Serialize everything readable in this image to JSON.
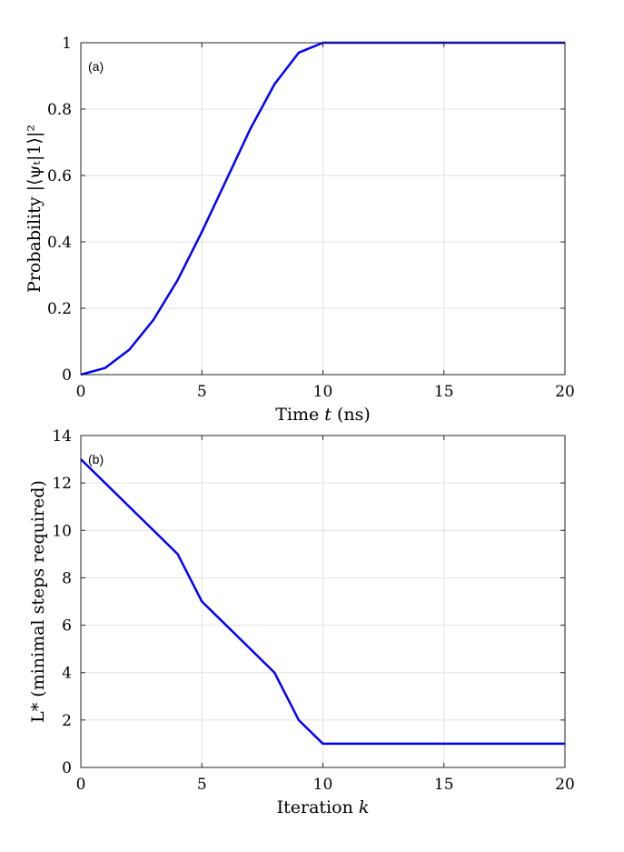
{
  "chart_data": [
    {
      "type": "line",
      "panel_label": "(a)",
      "xlabel_main": "Time ",
      "xlabel_var": "t",
      "xlabel_unit": "(ns)",
      "ylabel": "Probability |⟨ψₜ|1⟩|²",
      "xlim": [
        0,
        20
      ],
      "ylim": [
        0,
        1
      ],
      "xticks": [
        0,
        5,
        10,
        15,
        20
      ],
      "xtick_labels": [
        "0",
        "5",
        "10",
        "15",
        "20"
      ],
      "yticks": [
        0,
        0.2,
        0.4,
        0.6,
        0.8,
        1
      ],
      "ytick_labels": [
        "0",
        "0.2",
        "0.4",
        "0.6",
        "0.8",
        "1"
      ],
      "grid": true,
      "series": [
        {
          "color": "#0000ff",
          "x": [
            0,
            1,
            2,
            3,
            4,
            5,
            6,
            7,
            8,
            9,
            10,
            11,
            12,
            13,
            14,
            15,
            16,
            17,
            18,
            19,
            20
          ],
          "y": [
            0.0,
            0.02,
            0.075,
            0.165,
            0.285,
            0.43,
            0.585,
            0.74,
            0.875,
            0.97,
            1.0,
            1.0,
            1.0,
            1.0,
            1.0,
            1.0,
            1.0,
            1.0,
            1.0,
            1.0,
            1.0
          ]
        }
      ]
    },
    {
      "type": "line",
      "panel_label": "(b)",
      "xlabel_main": "Iteration ",
      "xlabel_var": "k",
      "xlabel_unit": "",
      "ylabel": "L* (minimal steps required)",
      "xlim": [
        0,
        20
      ],
      "ylim": [
        0,
        14
      ],
      "xticks": [
        0,
        5,
        10,
        15,
        20
      ],
      "xtick_labels": [
        "0",
        "5",
        "10",
        "15",
        "20"
      ],
      "yticks": [
        0,
        2,
        4,
        6,
        8,
        10,
        12,
        14
      ],
      "ytick_labels": [
        "0",
        "2",
        "4",
        "6",
        "8",
        "10",
        "12",
        "14"
      ],
      "grid": true,
      "series": [
        {
          "color": "#0000ff",
          "x": [
            0,
            1,
            2,
            3,
            4,
            5,
            6,
            7,
            8,
            9,
            10,
            11,
            12,
            13,
            14,
            15,
            16,
            17,
            18,
            19,
            20
          ],
          "y": [
            13,
            12,
            11,
            10,
            9,
            7,
            6,
            5,
            4,
            2,
            1,
            1,
            1,
            1,
            1,
            1,
            1,
            1,
            1,
            1,
            1
          ]
        }
      ]
    }
  ]
}
